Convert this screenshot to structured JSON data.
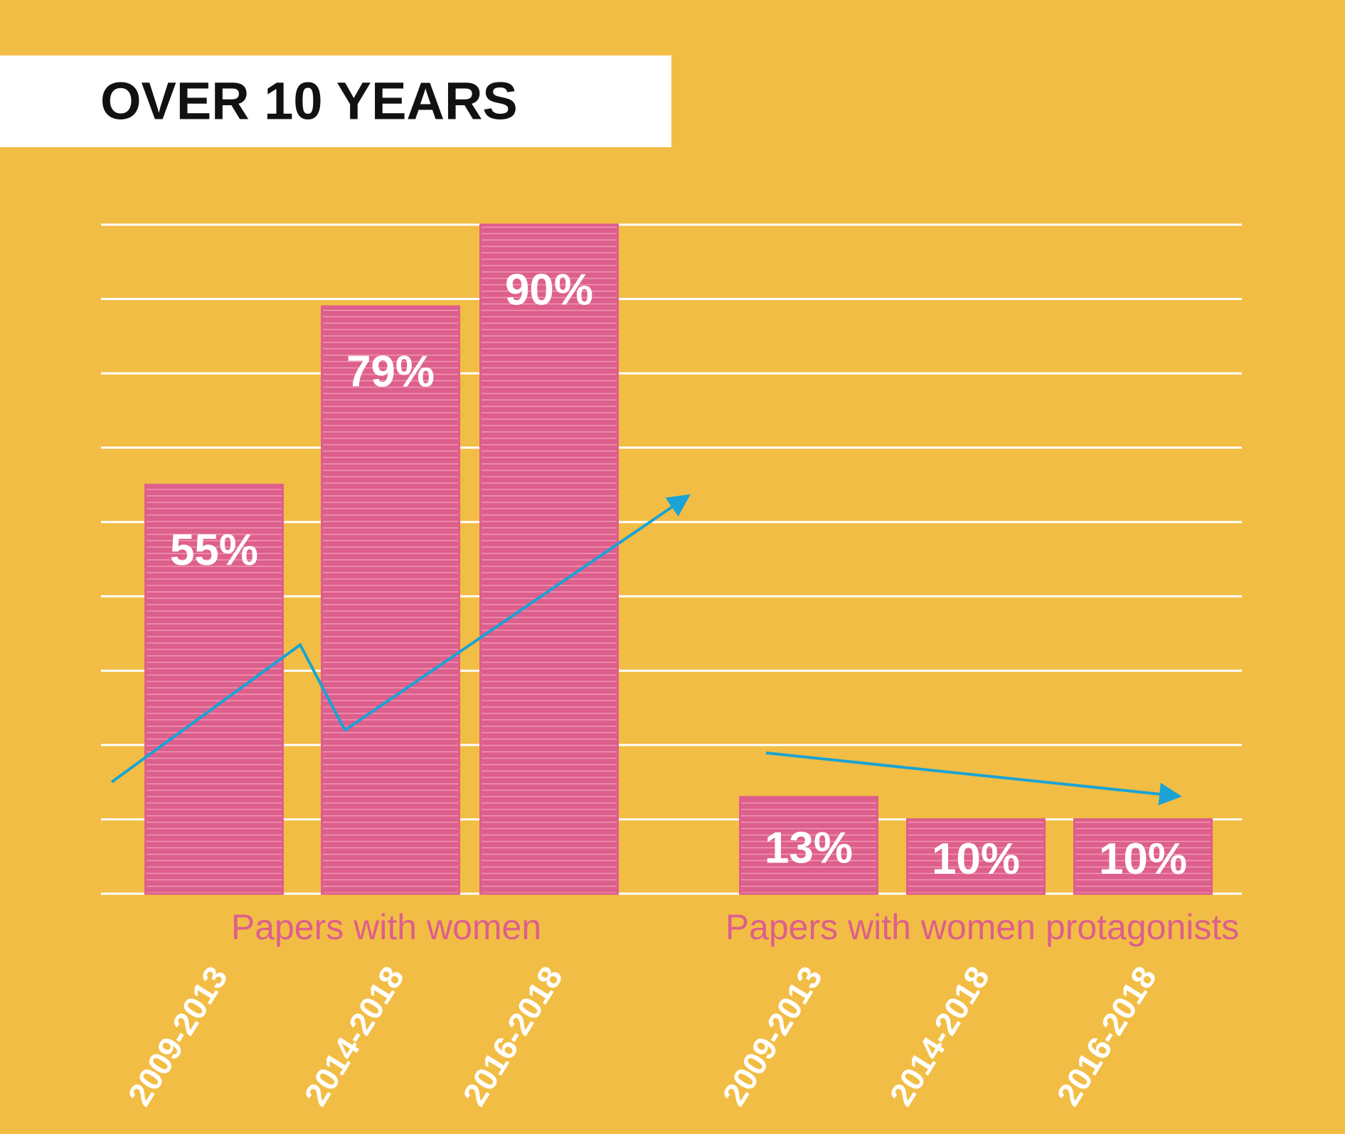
{
  "chart_data": {
    "type": "bar",
    "title": "OVER 10 YEARS",
    "groups": [
      {
        "name": "Papers with women",
        "categories": [
          "2009-2013",
          "2014-2018",
          "2016-2018"
        ],
        "values": [
          55,
          79,
          90
        ],
        "value_labels": [
          "55%",
          "79%",
          "90%"
        ]
      },
      {
        "name": "Papers with women protagonists",
        "categories": [
          "2009-2013",
          "2014-2018",
          "2016-2018"
        ],
        "values": [
          13,
          10,
          10
        ],
        "value_labels": [
          "13%",
          "10%",
          "10%"
        ]
      }
    ],
    "color": "#dd5f8c",
    "ylim": [
      0,
      90
    ],
    "yticks": [
      0,
      10,
      20,
      30,
      40,
      50,
      60,
      70,
      80,
      90
    ],
    "grid": true,
    "show_tick_labels": false
  }
}
